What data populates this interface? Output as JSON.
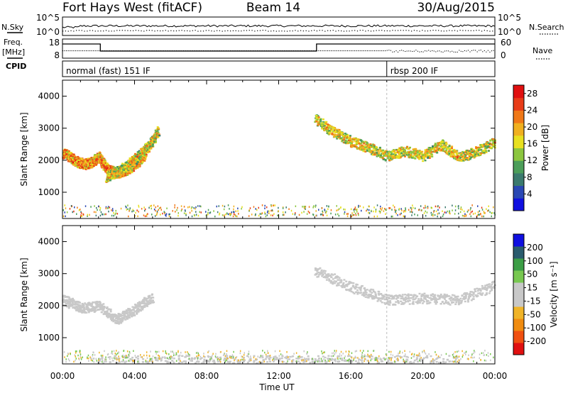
{
  "header": {
    "station": "Fort Hays West (fitACF)",
    "beam": "Beam 14",
    "date": "30/Aug/2015"
  },
  "strip_labels": {
    "nsky": "N.Sky",
    "freq_line1": "Freq.",
    "freq_line2": "[MHz]",
    "cpid": "CPID",
    "nsearch": "N.Search",
    "nave": "Nave"
  },
  "nsky_axis": {
    "top": "10^5",
    "bottom": "10^0"
  },
  "freq_axis": {
    "top": "18",
    "bottom": "8"
  },
  "nave_axis": {
    "top": "60",
    "bottom": "0"
  },
  "cpid_programs": [
    {
      "label": "normal (fast) 151 IF",
      "start_h": 0,
      "end_h": 18
    },
    {
      "label": "rbsp 200 IF",
      "start_h": 18,
      "end_h": 24
    }
  ],
  "x_axis": {
    "label": "Time UT",
    "ticks": [
      "00:00",
      "04:00",
      "08:00",
      "12:00",
      "16:00",
      "20:00",
      "00:00"
    ],
    "range_h": [
      0,
      24
    ]
  },
  "colors": {
    "power": [
      "#1010e0",
      "#2a48b4",
      "#3b7a6e",
      "#4c9e5a",
      "#8cc63f",
      "#e8e020",
      "#f0b020",
      "#f07818",
      "#e83c18",
      "#e01010"
    ],
    "velocity": [
      "#e01010",
      "#f05010",
      "#f08c10",
      "#f0b428",
      "#c8c8c8",
      "#c8c8c8",
      "#78c850",
      "#3c9e46",
      "#2a5c6e",
      "#1010e0"
    ]
  },
  "chart_data": [
    {
      "type": "heatmap",
      "name": "power",
      "ylabel": "Slant Range [km]",
      "xlabel": "",
      "xlim": [
        0,
        24
      ],
      "ylim": [
        180,
        4500
      ],
      "yticks": [
        1000,
        2000,
        3000,
        4000
      ],
      "colorbar": {
        "label": "Power [dB]",
        "ticks": [
          "4",
          "8",
          "12",
          "16",
          "20",
          "24",
          "28"
        ],
        "range": [
          0,
          30
        ]
      },
      "features": [
        {
          "desc": "ground scatter band",
          "t": [
            0.0,
            0.4,
            0.8,
            1.2,
            1.6,
            2.0,
            2.4,
            3.0,
            3.6,
            4.2,
            4.6
          ],
          "r": [
            2250,
            2120,
            1960,
            1890,
            1960,
            2120,
            1750,
            1620,
            1720,
            1980,
            2250
          ],
          "power": 22
        },
        {
          "desc": "rising echo",
          "t": [
            2.4,
            3.0,
            3.6,
            4.2,
            4.8,
            5.3
          ],
          "r": [
            1500,
            1650,
            1870,
            2150,
            2480,
            2950
          ],
          "power": 18
        },
        {
          "desc": "late band",
          "t": [
            14.0,
            15.0,
            16.0,
            17.0,
            18.0,
            19.0,
            20.0,
            21.0,
            22.0,
            23.0,
            24.0
          ],
          "r": [
            3300,
            2900,
            2600,
            2400,
            2150,
            2300,
            2150,
            2500,
            2100,
            2300,
            2600
          ],
          "power": 18
        }
      ]
    },
    {
      "type": "heatmap",
      "name": "velocity",
      "ylabel": "Slant Range [km]",
      "xlabel": "Time UT",
      "xlim": [
        0,
        24
      ],
      "ylim": [
        180,
        4500
      ],
      "yticks": [
        1000,
        2000,
        3000,
        4000
      ],
      "colorbar": {
        "label": "Velocity [m s⁻¹]",
        "ticks": [
          "200",
          "100",
          "50",
          "15",
          "-15",
          "-50",
          "-100",
          "-200"
        ]
      },
      "features": [
        {
          "desc": "low velocity ground scatter",
          "t": [
            0.0,
            1.0,
            2.0,
            3.0,
            4.0,
            5.0
          ],
          "r": [
            2200,
            1950,
            2000,
            1600,
            1900,
            2300
          ],
          "velocity": 0
        },
        {
          "desc": "late low velocity band",
          "t": [
            14.0,
            16.0,
            18.0,
            20.0,
            22.0,
            24.0
          ],
          "r": [
            3100,
            2600,
            2200,
            2250,
            2200,
            2650
          ],
          "velocity": 0
        },
        {
          "desc": "near range",
          "t": [
            2.0,
            6.0,
            10.0,
            14.0,
            18.0,
            22.0
          ],
          "r": [
            300,
            300,
            300,
            300,
            300,
            300
          ],
          "velocity": 20
        }
      ]
    }
  ]
}
